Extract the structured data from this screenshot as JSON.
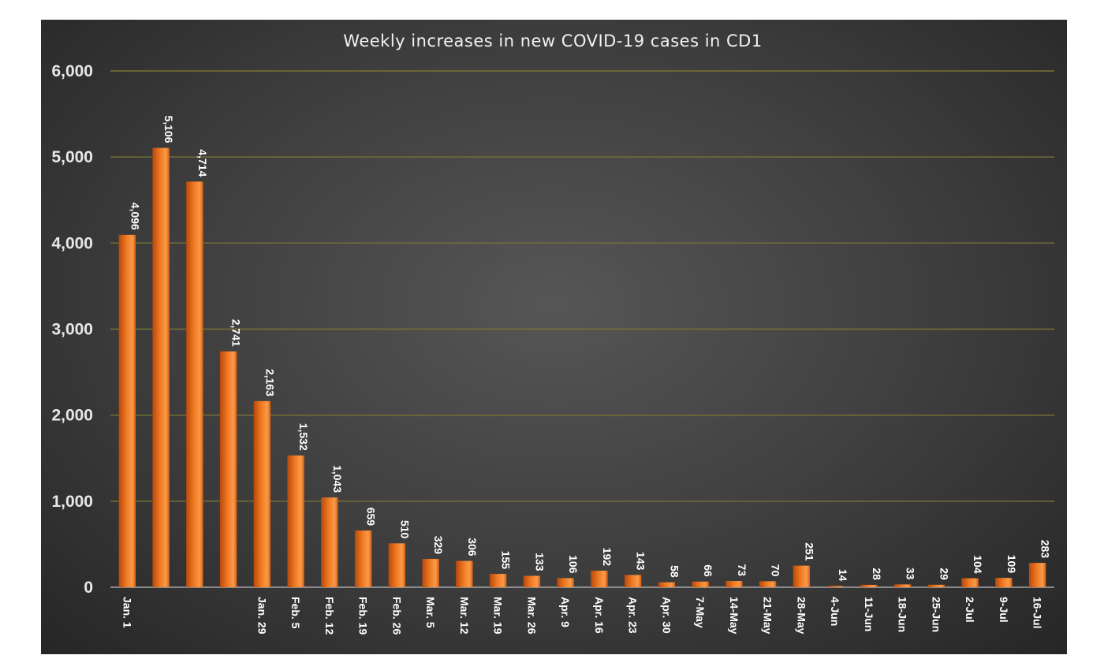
{
  "chart_data": {
    "type": "bar",
    "title": "Weekly increases in new COVID-19 cases in CD1",
    "xlabel": "",
    "ylabel": "",
    "ylim": [
      0,
      6000
    ],
    "yticks": [
      "0",
      "1,000",
      "2,000",
      "3,000",
      "4,000",
      "5,000",
      "6,000"
    ],
    "ytick_values": [
      0,
      1000,
      2000,
      3000,
      4000,
      5000,
      6000
    ],
    "grid": true,
    "legend": "none",
    "categories": [
      "Jan. 1",
      "",
      "",
      "",
      "Jan. 29",
      "Feb. 5",
      "Feb. 12",
      "Feb. 19",
      "Feb. 26",
      "Mar. 5",
      "Mar. 12",
      "Mar. 19",
      "Mar. 26",
      "Apr. 9",
      "Apr. 16",
      "Apr. 23",
      "Apr. 30",
      "7-May",
      "14-May",
      "21-May",
      "28-May",
      "4-Jun",
      "11-Jun",
      "18-Jun",
      "25-Jun",
      "2-Jul",
      "9-Jul",
      "16-Jul"
    ],
    "values": [
      4096,
      5106,
      4714,
      2741,
      2163,
      1532,
      1043,
      659,
      510,
      329,
      306,
      155,
      133,
      106,
      192,
      143,
      58,
      66,
      73,
      70,
      251,
      14,
      28,
      33,
      29,
      104,
      109,
      283
    ],
    "data_labels": [
      "4,096",
      "5,106",
      "4,714",
      "2,741",
      "2,163",
      "1,532",
      "1,043",
      "659",
      "510",
      "329",
      "306",
      "155",
      "133",
      "106",
      "192",
      "143",
      "58",
      "66",
      "73",
      "70",
      "251",
      "14",
      "28",
      "33",
      "29",
      "104",
      "109",
      "283"
    ],
    "colors": {
      "bar_dark": "#b8480c",
      "bar_mid": "#f07a22",
      "bar_light": "#fa9a4a",
      "grid": "#7a7235",
      "text": "#ffffff"
    }
  }
}
